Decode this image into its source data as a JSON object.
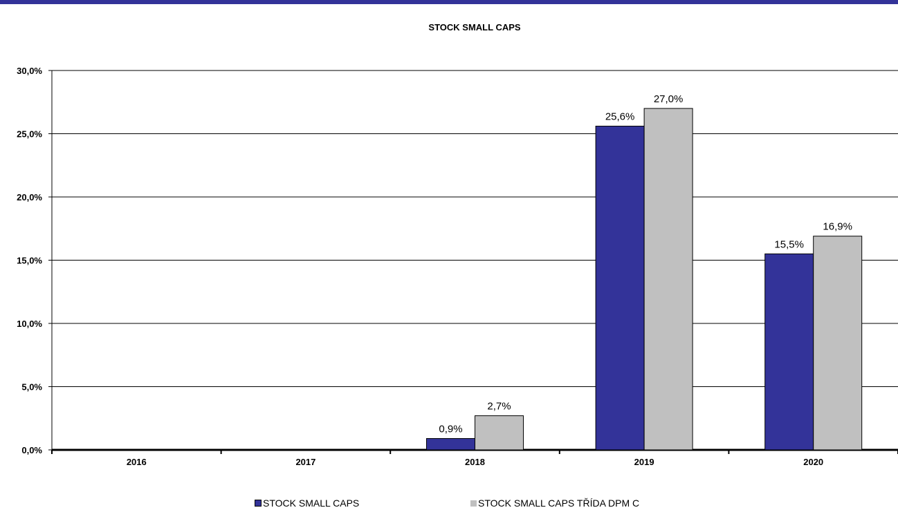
{
  "chart_data": {
    "type": "bar",
    "title": "STOCK SMALL CAPS",
    "categories": [
      "2016",
      "2017",
      "2018",
      "2019",
      "2020"
    ],
    "series": [
      {
        "name": "STOCK SMALL CAPS",
        "color": "#333399",
        "values": [
          null,
          null,
          0.9,
          25.6,
          15.5
        ],
        "labels": [
          "",
          "",
          "0,9%",
          "25,6%",
          "15,5%"
        ]
      },
      {
        "name": "STOCK SMALL CAPS TŘÍDA DPM C",
        "color": "#C0C0C0",
        "values": [
          null,
          null,
          2.7,
          27.0,
          16.9
        ],
        "labels": [
          "",
          "",
          "2,7%",
          "27,0%",
          "16,9%"
        ]
      }
    ],
    "ylim": [
      0,
      30
    ],
    "yticks": [
      "0,0%",
      "5,0%",
      "10,0%",
      "15,0%",
      "20,0%",
      "25,0%",
      "30,0%"
    ],
    "grid": true,
    "legend": "bottom"
  }
}
